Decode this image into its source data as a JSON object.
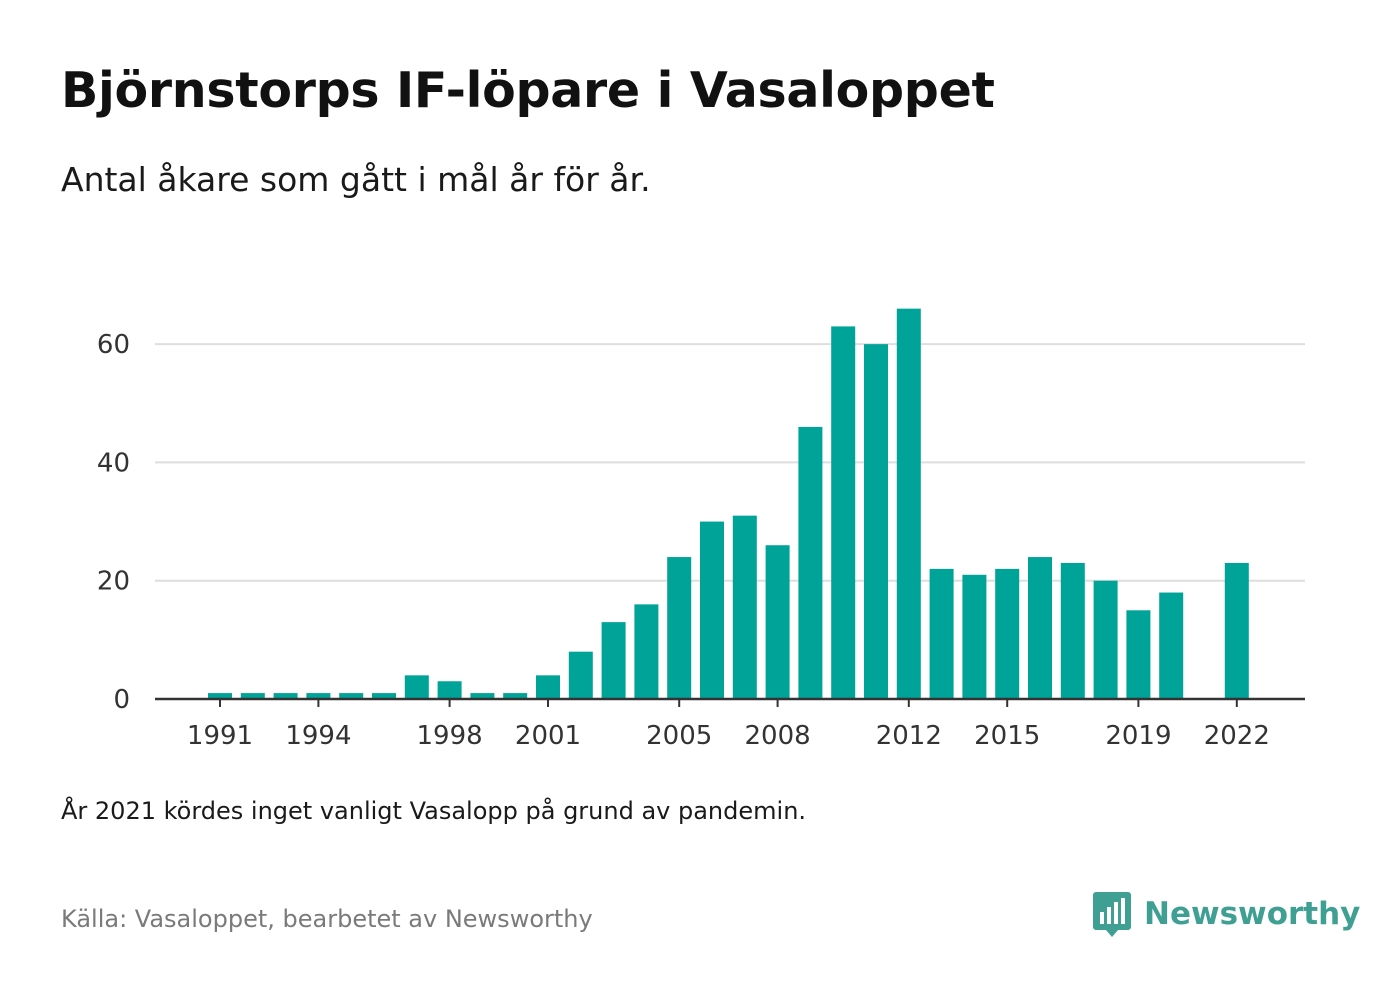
{
  "header": {
    "title": "Björnstorps IF-löpare i Vasaloppet",
    "subtitle": "Antal åkare som gått i mål år för år."
  },
  "footer": {
    "note": "År 2021 kördes inget vanligt Vasalopp på grund av pandemin.",
    "source": "Källa: Vasaloppet, bearbetet av Newsworthy",
    "brand": "Newsworthy",
    "brand_icon": "bar-chart-speech-bubble-icon"
  },
  "colors": {
    "bar": "#00a398",
    "grid": "#dedede",
    "axis": "#333333",
    "brand": "#3f9f93"
  },
  "chart_data": {
    "type": "bar",
    "categories": [
      "1991",
      "1992",
      "1993",
      "1994",
      "1995",
      "1996",
      "1997",
      "1998",
      "1999",
      "2000",
      "2001",
      "2002",
      "2003",
      "2004",
      "2005",
      "2006",
      "2007",
      "2008",
      "2009",
      "2010",
      "2011",
      "2012",
      "2013",
      "2014",
      "2015",
      "2016",
      "2017",
      "2018",
      "2019",
      "2020",
      "2021",
      "2022"
    ],
    "values": [
      1,
      1,
      1,
      1,
      1,
      1,
      4,
      3,
      1,
      1,
      4,
      8,
      13,
      16,
      24,
      30,
      31,
      26,
      46,
      63,
      60,
      66,
      22,
      21,
      22,
      24,
      23,
      20,
      15,
      18,
      null,
      23
    ],
    "x_tick_labels": [
      "1991",
      "1994",
      "1998",
      "2001",
      "2005",
      "2008",
      "2012",
      "2015",
      "2019",
      "2022"
    ],
    "y_ticks": [
      0,
      20,
      40,
      60
    ],
    "ylim": [
      0,
      70
    ],
    "grid": "horizontal",
    "legend": "none"
  }
}
